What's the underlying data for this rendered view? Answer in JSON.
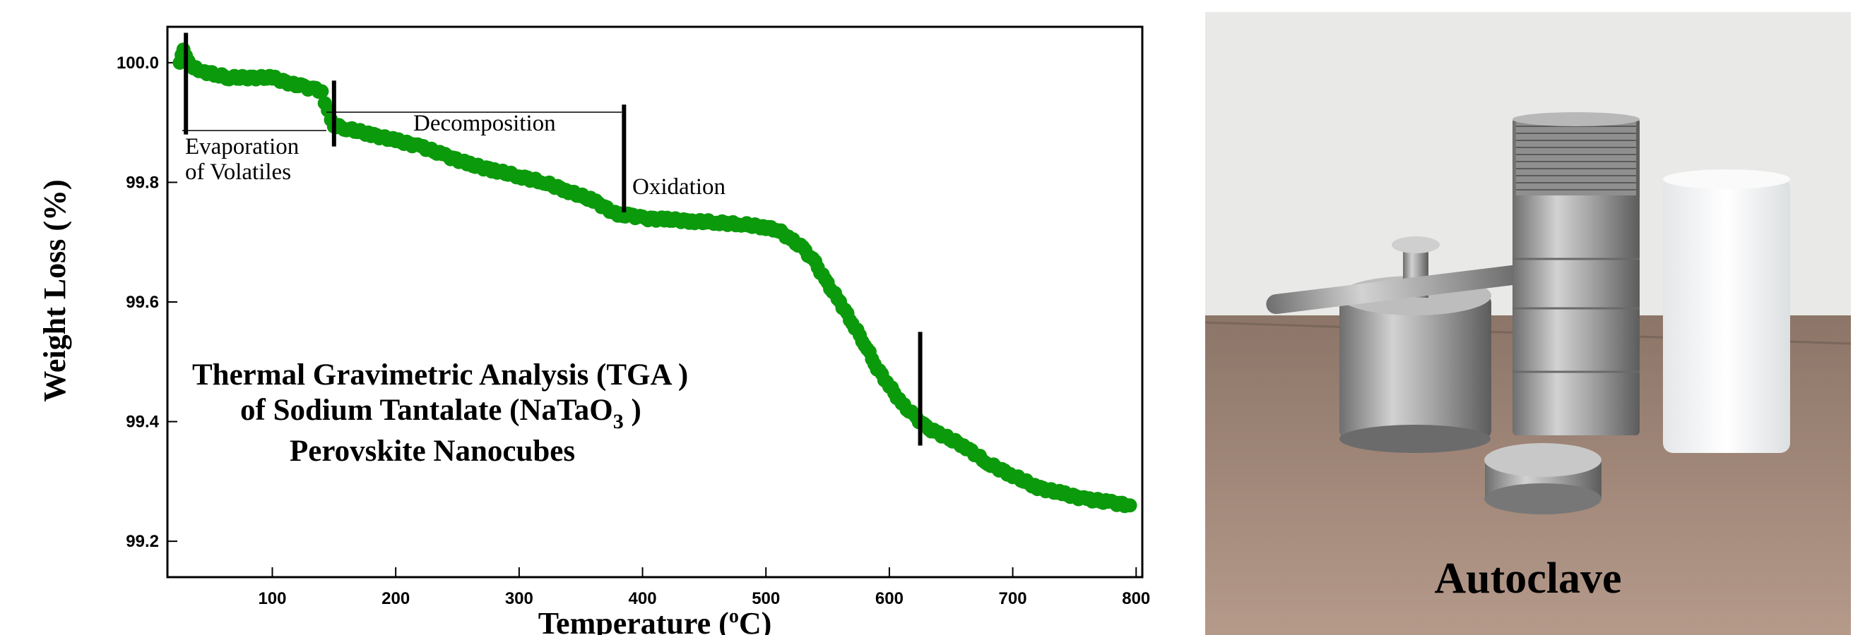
{
  "chart_data": {
    "type": "scatter",
    "xlabel": "Temperature (",
    "xlabel_sup": "o",
    "xlabel_end": "C)",
    "ylabel": "Weight Loss (%)",
    "xlim": [
      15,
      805
    ],
    "ylim": [
      99.14,
      100.06
    ],
    "x_ticks": [
      100,
      200,
      300,
      400,
      500,
      600,
      700,
      800
    ],
    "y_ticks": [
      99.2,
      99.4,
      99.6,
      99.8,
      100.0
    ],
    "y_tick_labels": [
      "99.2",
      "99.4",
      "99.6",
      "99.8",
      "100.0"
    ],
    "grid": false,
    "point_color": "#0b9a0b",
    "series": [
      {
        "x": [
          25,
          28,
          32,
          38,
          45,
          55,
          65,
          80,
          100,
          115,
          125,
          135,
          140,
          145,
          150,
          160,
          180,
          200,
          220,
          240,
          260,
          280,
          300,
          320,
          340,
          360,
          380,
          390,
          400,
          420,
          440,
          460,
          480,
          500,
          510,
          520,
          530,
          540,
          550,
          560,
          570,
          580,
          590,
          600,
          610,
          620,
          630,
          640,
          660,
          680,
          700,
          720,
          740,
          760,
          780,
          795
        ],
        "y": [
          100.0,
          100.02,
          100.0,
          99.99,
          99.985,
          99.98,
          99.975,
          99.975,
          99.975,
          99.965,
          99.96,
          99.955,
          99.95,
          99.92,
          99.895,
          99.89,
          99.88,
          99.87,
          99.86,
          99.845,
          99.83,
          99.82,
          99.81,
          99.8,
          99.785,
          99.77,
          99.745,
          99.745,
          99.74,
          99.738,
          99.735,
          99.733,
          99.73,
          99.725,
          99.72,
          99.705,
          99.69,
          99.665,
          99.63,
          99.6,
          99.565,
          99.53,
          99.49,
          99.46,
          99.43,
          99.41,
          99.39,
          99.38,
          99.36,
          99.33,
          99.31,
          99.29,
          99.28,
          99.27,
          99.265,
          99.26
        ]
      }
    ],
    "event_lines": [
      30,
      150,
      385,
      625
    ],
    "annotations": [
      {
        "text": "Evaporation",
        "x": 30
      },
      {
        "text": "of Volatiles",
        "x": 30
      },
      {
        "text": "Decomposition",
        "x": 200
      },
      {
        "text": "Oxidation",
        "x": 395
      }
    ],
    "title_lines": [
      "Thermal Gravimetric Analysis (TGA )",
      "of  Sodium Tantalate (NaTaO",
      "Perovskite Nanocubes"
    ],
    "title_sub": "3",
    "title_close": " )"
  },
  "photo": {
    "caption": "Autoclave",
    "colors": {
      "wall": "#e8e8e6",
      "table": "#9a8475",
      "steel": "#9b9b9b",
      "ptfe": "#f5f6f6"
    }
  }
}
